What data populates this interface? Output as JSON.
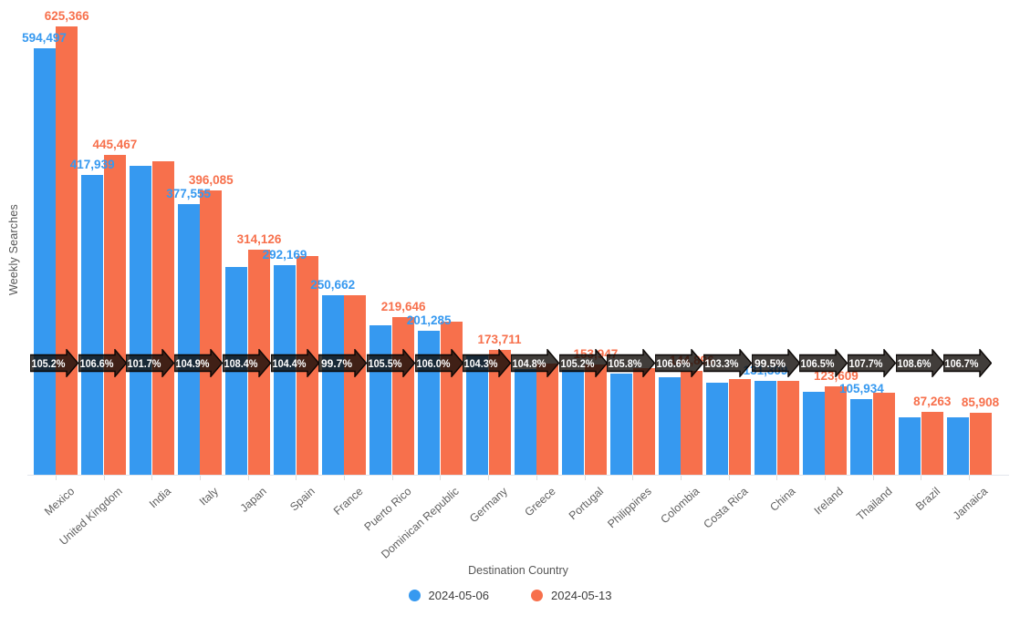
{
  "chart_data": {
    "type": "bar",
    "title": "",
    "xlabel": "Destination Country",
    "ylabel": "Weekly Searches",
    "legend_position": "bottom",
    "grid": false,
    "ylim": [
      0,
      650000
    ],
    "categories": [
      "Mexico",
      "United Kingdom",
      "India",
      "Italy",
      "Japan",
      "Spain",
      "France",
      "Puerto Rico",
      "Dominican Republic",
      "Germany",
      "Greece",
      "Portugal",
      "Philippines",
      "Colombia",
      "Costa Rica",
      "China",
      "Ireland",
      "Thailand",
      "Brazil",
      "Jamaica"
    ],
    "series": [
      {
        "name": "2024-05-06",
        "color": "#3699F0",
        "values": [
          594497,
          417939,
          430000,
          377555,
          289784,
          292169,
          250662,
          208195,
          201285,
          166549,
          147900,
          146337,
          140830,
          135925,
          128750,
          131309,
          116064,
          105934,
          80353,
          80514
        ],
        "visible_labels": [
          "594,497",
          "417,939",
          null,
          "377,555",
          null,
          "292,169",
          "250,662",
          null,
          "201,285",
          null,
          null,
          null,
          null,
          null,
          null,
          "131,309",
          null,
          "105,934",
          null,
          null
        ]
      },
      {
        "name": "2024-05-13",
        "color": "#F7704C",
        "values": [
          625366,
          445467,
          437310,
          396085,
          314126,
          305024,
          249910,
          219646,
          213362,
          173711,
          155000,
          153947,
          149000,
          144896,
          133000,
          130652,
          123609,
          114091,
          87263,
          85908
        ],
        "visible_labels": [
          "625,366",
          "445,467",
          null,
          "396,085",
          "314,126",
          null,
          null,
          "219,646",
          null,
          "173,711",
          null,
          "153,947",
          null,
          "144,896",
          null,
          null,
          "123,609",
          null,
          "87,263",
          "85,908"
        ]
      }
    ],
    "pct_badges": [
      "105.2%",
      "106.6%",
      "101.7%",
      "104.9%",
      "108.4%",
      "104.4%",
      "99.7%",
      "105.5%",
      "106.0%",
      "104.3%",
      "104.8%",
      "105.2%",
      "105.8%",
      "106.6%",
      "103.3%",
      "99.5%",
      "106.5%",
      "107.7%",
      "108.6%",
      "106.7%"
    ],
    "badge_style": {
      "fill": "rgba(18,12,9,0.8)",
      "stroke": "#0a0604",
      "text_color": "#ffffff"
    }
  },
  "legend": {
    "items": [
      {
        "label": "2024-05-06",
        "color": "#3699F0"
      },
      {
        "label": "2024-05-13",
        "color": "#F7704C"
      }
    ]
  }
}
